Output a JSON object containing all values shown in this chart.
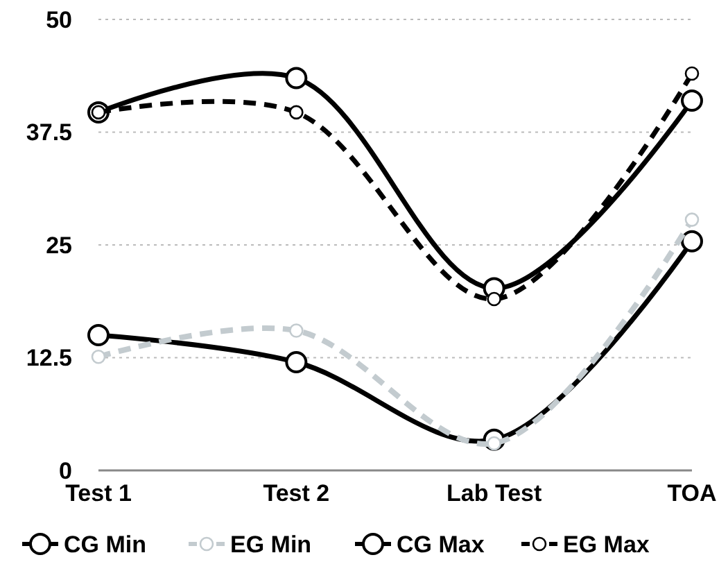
{
  "chart_data": {
    "type": "line",
    "categories": [
      "Test 1",
      "Test 2",
      "Lab Test",
      "TOA"
    ],
    "series": [
      {
        "name": "CG Min",
        "color": "#000000",
        "line_style": "solid",
        "values": [
          15,
          12,
          3.4,
          25.4
        ]
      },
      {
        "name": "EG Min",
        "color": "#c3cbcf",
        "line_style": "dashed",
        "values": [
          12.6,
          15.5,
          3,
          27.8
        ]
      },
      {
        "name": "CG Max",
        "color": "#000000",
        "line_style": "solid",
        "values": [
          39.7,
          43.5,
          20.2,
          41
        ]
      },
      {
        "name": "EG Max",
        "color": "#000000",
        "line_style": "dashed",
        "values": [
          39.7,
          39.7,
          19,
          44
        ]
      }
    ],
    "ylim": [
      0,
      50
    ],
    "yticks": [
      0,
      12.5,
      25,
      37.5,
      50
    ],
    "grid": "y",
    "marker": "circle",
    "legend": "bottom"
  }
}
